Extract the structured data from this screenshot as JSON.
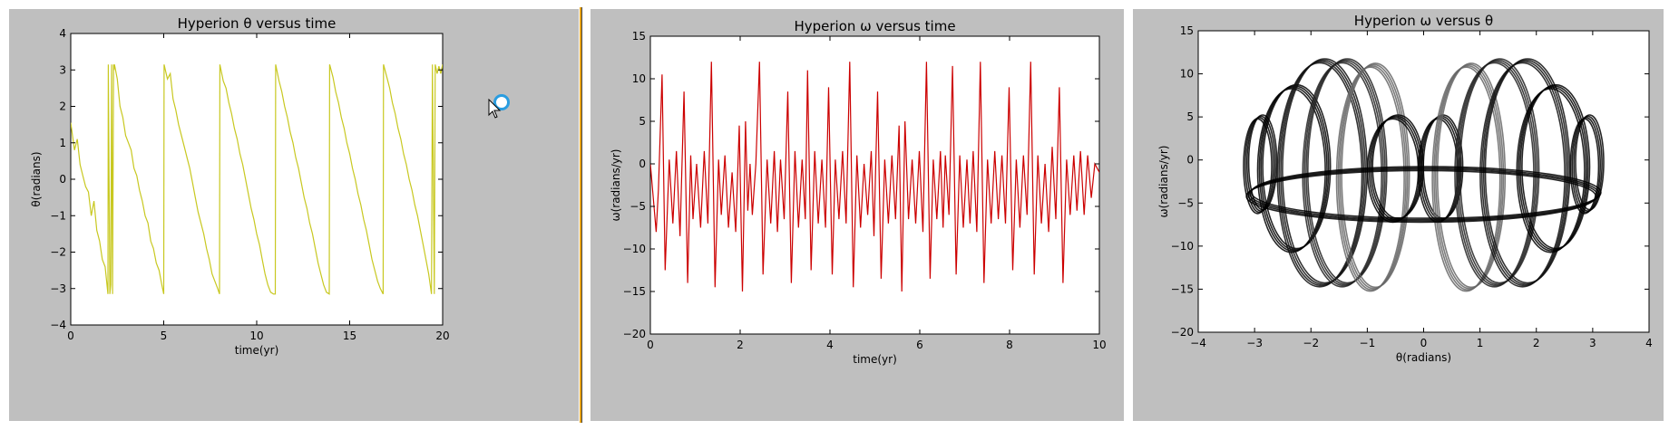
{
  "chart_data": [
    {
      "type": "line",
      "title": "Hyperion θ versus time",
      "xlabel": "time(yr)",
      "ylabel": "θ(radians)",
      "xlim": [
        0,
        20
      ],
      "ylim": [
        -4,
        4
      ],
      "xticks": [
        "0",
        "5",
        "10",
        "15",
        "20"
      ],
      "yticks": [
        "4",
        "3",
        "2",
        "1",
        "0",
        "−1",
        "−2",
        "−3",
        "−4"
      ],
      "grid": false,
      "color": "#c8c820",
      "series": [
        {
          "x": [
            0.0,
            0.2,
            0.35,
            0.5,
            0.65,
            0.8,
            0.95,
            1.1,
            1.25,
            1.4,
            1.55,
            1.7,
            1.85,
            2.0,
            2.02,
            2.05,
            2.1,
            2.15,
            2.2,
            2.25,
            2.3,
            2.32,
            2.35,
            2.5,
            2.65,
            2.8,
            2.95,
            3.1,
            3.25,
            3.4,
            3.55,
            3.7,
            3.85,
            4.0,
            4.15,
            4.3,
            4.45,
            4.6,
            4.75,
            4.9,
            5.0,
            5.02,
            5.2,
            5.35,
            5.5,
            5.65,
            5.8,
            5.95,
            6.1,
            6.25,
            6.4,
            6.55,
            6.7,
            6.85,
            7.0,
            7.15,
            7.3,
            7.45,
            7.6,
            7.75,
            7.9,
            8.0,
            8.02,
            8.2,
            8.35,
            8.5,
            8.65,
            8.8,
            8.95,
            9.1,
            9.25,
            9.4,
            9.55,
            9.7,
            9.85,
            10.0,
            10.15,
            10.3,
            10.45,
            10.6,
            10.75,
            10.9,
            11.0,
            11.02,
            11.2,
            11.35,
            11.5,
            11.65,
            11.8,
            11.95,
            12.1,
            12.25,
            12.4,
            12.55,
            12.7,
            12.85,
            13.0,
            13.15,
            13.3,
            13.45,
            13.6,
            13.75,
            13.9,
            13.92,
            14.1,
            14.25,
            14.4,
            14.55,
            14.7,
            14.85,
            15.0,
            15.15,
            15.3,
            15.45,
            15.6,
            15.75,
            15.9,
            16.05,
            16.2,
            16.35,
            16.5,
            16.65,
            16.8,
            16.82,
            17.0,
            17.15,
            17.3,
            17.45,
            17.6,
            17.75,
            17.9,
            18.05,
            18.2,
            18.35,
            18.5,
            18.65,
            18.8,
            18.95,
            19.1,
            19.25,
            19.4,
            19.45,
            19.55,
            19.6,
            19.7,
            19.8,
            19.9,
            20.0
          ],
          "y": [
            1.55,
            0.8,
            1.1,
            0.4,
            0.1,
            -0.2,
            -0.35,
            -1.0,
            -0.6,
            -1.4,
            -1.7,
            -2.2,
            -2.4,
            -3.15,
            3.15,
            1.0,
            -3.15,
            -2.9,
            3.15,
            -3.15,
            3.15,
            3.0,
            3.15,
            2.75,
            2.0,
            1.7,
            1.2,
            1.0,
            0.8,
            0.3,
            0.1,
            -0.3,
            -0.6,
            -1.0,
            -1.2,
            -1.7,
            -1.9,
            -2.3,
            -2.5,
            -2.9,
            -3.15,
            3.15,
            2.75,
            2.9,
            2.2,
            1.9,
            1.5,
            1.2,
            0.9,
            0.6,
            0.3,
            -0.1,
            -0.5,
            -0.9,
            -1.2,
            -1.5,
            -1.9,
            -2.2,
            -2.6,
            -2.8,
            -3.0,
            -3.15,
            3.15,
            2.7,
            2.5,
            2.1,
            1.8,
            1.4,
            1.1,
            0.7,
            0.4,
            0.0,
            -0.4,
            -0.8,
            -1.1,
            -1.5,
            -1.8,
            -2.2,
            -2.6,
            -2.9,
            -3.1,
            -3.15,
            -3.15,
            3.15,
            2.7,
            2.4,
            2.0,
            1.7,
            1.3,
            1.0,
            0.6,
            0.3,
            -0.1,
            -0.5,
            -0.8,
            -1.2,
            -1.5,
            -1.9,
            -2.3,
            -2.6,
            -2.9,
            -3.1,
            -3.15,
            3.15,
            2.8,
            2.4,
            2.1,
            1.7,
            1.4,
            1.0,
            0.7,
            0.3,
            0.0,
            -0.4,
            -0.7,
            -1.1,
            -1.4,
            -1.8,
            -2.2,
            -2.5,
            -2.8,
            -3.0,
            -3.15,
            3.15,
            2.8,
            2.5,
            2.1,
            1.8,
            1.4,
            1.1,
            0.7,
            0.4,
            0.0,
            -0.3,
            -0.7,
            -1.0,
            -1.4,
            -1.8,
            -2.2,
            -2.6,
            -3.15,
            3.15,
            -3.15,
            3.15,
            2.9,
            3.1,
            2.9,
            3.15
          ]
        }
      ]
    },
    {
      "type": "line",
      "title": "Hyperion ω versus time",
      "xlabel": "time(yr)",
      "ylabel": "ω(radians/yr)",
      "xlim": [
        0,
        10
      ],
      "ylim": [
        -20,
        15
      ],
      "xticks": [
        "0",
        "2",
        "4",
        "6",
        "8",
        "10"
      ],
      "yticks": [
        "15",
        "10",
        "5",
        "0",
        "−5",
        "−10",
        "−15",
        "−20"
      ],
      "grid": false,
      "color": "#cc0000",
      "series": [
        {
          "x": [
            0.0,
            0.08,
            0.13,
            0.18,
            0.26,
            0.33,
            0.42,
            0.5,
            0.58,
            0.66,
            0.75,
            0.83,
            0.9,
            0.95,
            1.03,
            1.12,
            1.2,
            1.28,
            1.36,
            1.44,
            1.52,
            1.58,
            1.66,
            1.74,
            1.82,
            1.9,
            1.98,
            2.05,
            2.12,
            2.17,
            2.22,
            2.27,
            2.35,
            2.43,
            2.51,
            2.6,
            2.68,
            2.76,
            2.83,
            2.9,
            2.98,
            3.06,
            3.14,
            3.22,
            3.3,
            3.38,
            3.45,
            3.5,
            3.58,
            3.66,
            3.74,
            3.82,
            3.9,
            3.97,
            4.05,
            4.12,
            4.2,
            4.28,
            4.36,
            4.44,
            4.52,
            4.6,
            4.68,
            4.76,
            4.84,
            4.92,
            4.98,
            5.06,
            5.14,
            5.22,
            5.3,
            5.38,
            5.46,
            5.54,
            5.6,
            5.67,
            5.75,
            5.83,
            5.91,
            5.99,
            6.07,
            6.15,
            6.23,
            6.3,
            6.38,
            6.46,
            6.52,
            6.57,
            6.65,
            6.73,
            6.81,
            6.89,
            6.97,
            7.05,
            7.12,
            7.19,
            7.27,
            7.35,
            7.43,
            7.51,
            7.59,
            7.67,
            7.75,
            7.83,
            7.91,
            7.99,
            8.07,
            8.15,
            8.23,
            8.31,
            8.39,
            8.47,
            8.55,
            8.63,
            8.71,
            8.79,
            8.87,
            8.95,
            9.03,
            9.11,
            9.19,
            9.27,
            9.35,
            9.43,
            9.5,
            9.58,
            9.66,
            9.74,
            9.82,
            9.9,
            10.0
          ],
          "y": [
            0.0,
            -5.0,
            -8.0,
            -3.0,
            10.5,
            -12.5,
            0.5,
            -7.0,
            1.5,
            -8.5,
            8.5,
            -14.0,
            1.0,
            -6.5,
            0.0,
            -7.5,
            1.5,
            -7.0,
            12.0,
            -14.5,
            0.5,
            -6.0,
            1.0,
            -7.5,
            -1.0,
            -8.0,
            4.5,
            -15.0,
            5.0,
            -5.5,
            0.0,
            -6.0,
            0.0,
            12.0,
            -13.0,
            0.5,
            -7.0,
            1.5,
            -8.0,
            0.5,
            -6.5,
            8.5,
            -14.0,
            1.5,
            -7.5,
            0.5,
            -6.5,
            11.0,
            -12.5,
            1.5,
            -7.0,
            0.5,
            -7.5,
            9.0,
            -13.0,
            0.5,
            -6.5,
            1.5,
            -7.0,
            12.0,
            -14.5,
            1.0,
            -7.5,
            0.0,
            -6.0,
            1.5,
            -8.5,
            8.5,
            -13.5,
            0.5,
            -7.0,
            1.0,
            -6.5,
            4.5,
            -15.0,
            5.0,
            -6.5,
            0.5,
            -7.0,
            1.5,
            -8.0,
            12.0,
            -13.5,
            0.5,
            -6.5,
            1.5,
            -7.5,
            1.0,
            -6.0,
            11.5,
            -13.0,
            1.0,
            -7.5,
            0.5,
            -7.0,
            1.5,
            -8.0,
            12.0,
            -14.0,
            0.5,
            -7.0,
            1.5,
            -6.5,
            1.0,
            -7.0,
            9.0,
            -12.5,
            0.5,
            -7.5,
            1.0,
            -6.0,
            12.0,
            -13.0,
            1.0,
            -7.0,
            0.0,
            -8.0,
            2.0,
            -6.5,
            9.0,
            -14.0,
            0.5,
            -6.0,
            1.0,
            -5.5,
            1.5,
            -6.0,
            1.0,
            -4.0,
            0.0,
            -1.0
          ]
        }
      ]
    },
    {
      "type": "scatter",
      "title": "Hyperion ω versus θ",
      "xlabel": "θ(radians)",
      "ylabel": "ω(radians/yr)",
      "xlim": [
        -4,
        4
      ],
      "ylim": [
        -20,
        15
      ],
      "xticks": [
        "−4",
        "−3",
        "−2",
        "−1",
        "0",
        "1",
        "2",
        "3",
        "4"
      ],
      "yticks": [
        "15",
        "10",
        "5",
        "0",
        "−5",
        "−10",
        "−15",
        "−20"
      ],
      "grid": false,
      "color": "#000000",
      "series": [
        {
          "center": [
            -2.9,
            -0.5
          ],
          "radius": [
            0.25,
            5.5
          ],
          "shade": "#000000"
        },
        {
          "center": [
            -2.3,
            -1.0
          ],
          "radius": [
            0.6,
            9.5
          ],
          "shade": "#000000"
        },
        {
          "center": [
            -1.8,
            -1.5
          ],
          "radius": [
            0.75,
            13.0
          ],
          "shade": "#111111"
        },
        {
          "center": [
            -1.4,
            -1.5
          ],
          "radius": [
            0.7,
            13.0
          ],
          "shade": "#222222"
        },
        {
          "center": [
            -0.9,
            -2.0
          ],
          "radius": [
            0.6,
            13.0
          ],
          "shade": "#666666"
        },
        {
          "center": [
            -0.5,
            -1.0
          ],
          "radius": [
            0.45,
            6.0
          ],
          "shade": "#000000"
        },
        {
          "center": [
            0.3,
            -1.0
          ],
          "radius": [
            0.35,
            6.0
          ],
          "shade": "#000000"
        },
        {
          "center": [
            0.8,
            -2.0
          ],
          "radius": [
            0.6,
            13.0
          ],
          "shade": "#666666"
        },
        {
          "center": [
            1.3,
            -1.5
          ],
          "radius": [
            0.7,
            13.0
          ],
          "shade": "#222222"
        },
        {
          "center": [
            1.8,
            -1.5
          ],
          "radius": [
            0.75,
            13.0
          ],
          "shade": "#111111"
        },
        {
          "center": [
            2.3,
            -1.0
          ],
          "radius": [
            0.6,
            9.5
          ],
          "shade": "#000000"
        },
        {
          "center": [
            2.9,
            -0.5
          ],
          "radius": [
            0.25,
            5.5
          ],
          "shade": "#000000"
        },
        {
          "center": [
            0.0,
            -4.0
          ],
          "radius": [
            3.1,
            3.0
          ],
          "shade": "#000000"
        }
      ]
    }
  ]
}
